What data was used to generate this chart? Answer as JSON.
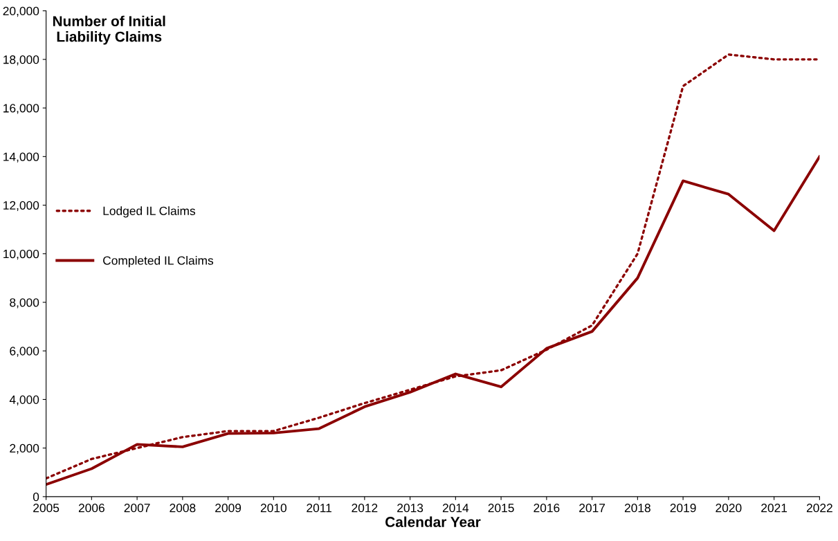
{
  "chart_data": {
    "type": "line",
    "ylabel": "Number of Initial\nLiability Claims",
    "xlabel": "Calendar Year",
    "x": [
      2005,
      2006,
      2007,
      2008,
      2009,
      2010,
      2011,
      2012,
      2013,
      2014,
      2015,
      2016,
      2017,
      2018,
      2019,
      2020,
      2021,
      2022
    ],
    "series": [
      {
        "name": "Lodged IL Claims",
        "color": "#8b0000",
        "line_style": "dotted",
        "values": [
          750,
          1550,
          2000,
          2450,
          2700,
          2700,
          3250,
          3850,
          4400,
          4950,
          5200,
          6050,
          7050,
          10000,
          16900,
          18200,
          18000,
          18000
        ]
      },
      {
        "name": "Completed IL Claims",
        "color": "#8b0000",
        "line_style": "solid",
        "values": [
          500,
          1150,
          2150,
          2050,
          2600,
          2620,
          2800,
          3700,
          4300,
          5050,
          4520,
          6100,
          6800,
          9000,
          13000,
          12450,
          10950,
          14000
        ]
      }
    ],
    "xlim": [
      2005,
      2022
    ],
    "xticks": [
      2005,
      2006,
      2007,
      2008,
      2009,
      2010,
      2011,
      2012,
      2013,
      2014,
      2015,
      2016,
      2017,
      2018,
      2019,
      2020,
      2021,
      2022
    ],
    "ylim": [
      0,
      20000
    ],
    "yticks": [
      {
        "value": 0,
        "label": "0"
      },
      {
        "value": 2000,
        "label": "2,000"
      },
      {
        "value": 4000,
        "label": "4,000"
      },
      {
        "value": 6000,
        "label": "6,000"
      },
      {
        "value": 8000,
        "label": "8,000"
      },
      {
        "value": 10000,
        "label": "10,000"
      },
      {
        "value": 12000,
        "label": "12,000"
      },
      {
        "value": 14000,
        "label": "14,000"
      },
      {
        "value": 16000,
        "label": "16,000"
      },
      {
        "value": 18000,
        "label": "18,000"
      },
      {
        "value": 20000,
        "label": "20,000"
      }
    ],
    "grid": false,
    "legend": "center left",
    "marker": "none"
  }
}
